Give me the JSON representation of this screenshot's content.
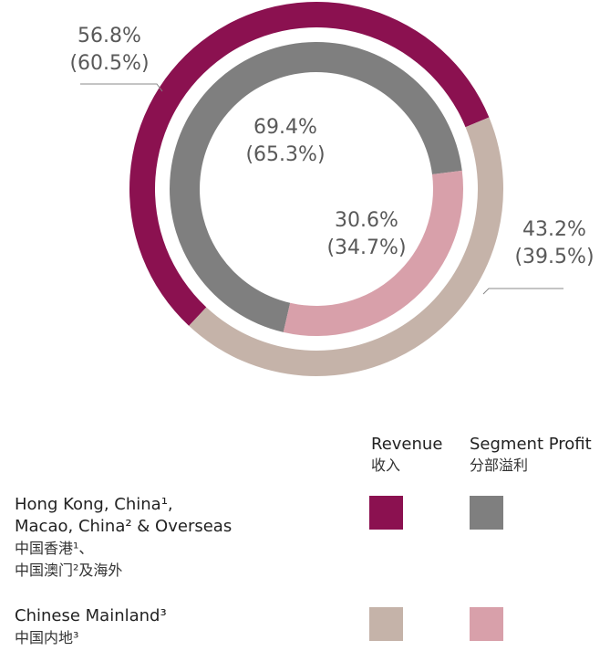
{
  "chart_data": {
    "type": "pie",
    "categories": [
      "Hong Kong, China¹,\nMacao, China² & Overseas",
      "Chinese Mainland³"
    ],
    "categories_zh": [
      "中国香港¹、\n中国澳门²及海外",
      "中国内地³"
    ],
    "series": [
      {
        "name": "Revenue",
        "name_zh": "收入",
        "colors": [
          "#8b1150",
          "#c5b3a9"
        ],
        "values": [
          56.8,
          43.2
        ],
        "value_labels": [
          "56.8%",
          "43.2%"
        ],
        "prior_values": [
          60.5,
          39.5
        ],
        "prior_value_labels": [
          "(60.5%)",
          "(39.5%)"
        ]
      },
      {
        "name": "Segment Profit",
        "name_zh": "分部溢利",
        "colors": [
          "#7f7f7f",
          "#d8a0aa"
        ],
        "values": [
          69.4,
          30.6
        ],
        "value_labels": [
          "69.4%",
          "30.6%"
        ],
        "prior_values": [
          65.3,
          34.7
        ],
        "prior_value_labels": [
          "(65.3%)",
          "(34.7%)"
        ]
      }
    ]
  }
}
